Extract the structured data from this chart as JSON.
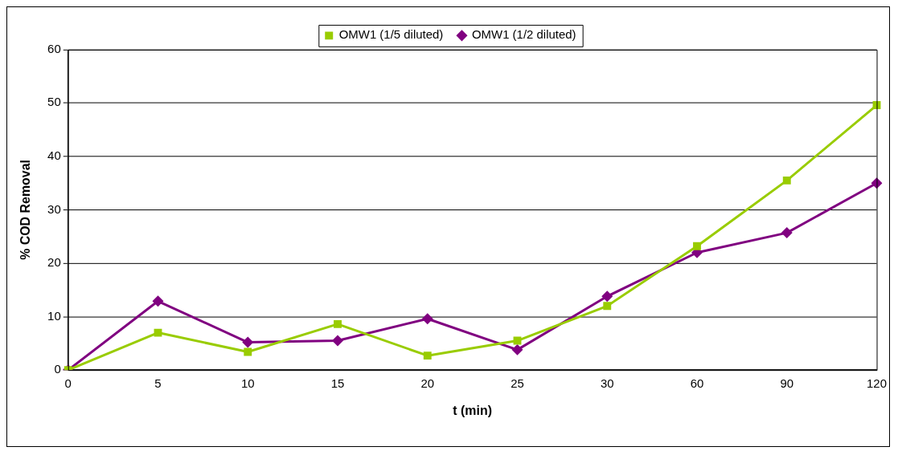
{
  "chart_data": {
    "type": "line",
    "xlabel": "t (min)",
    "ylabel": "% COD Removal",
    "categories": [
      "0",
      "5",
      "10",
      "15",
      "20",
      "25",
      "30",
      "60",
      "90",
      "120"
    ],
    "series": [
      {
        "name": "OMW1 (1/5 diluted)",
        "color": "#99cc00",
        "marker": "square",
        "values": [
          0,
          7.0,
          3.4,
          8.6,
          2.7,
          5.5,
          12.0,
          23.2,
          35.5,
          49.6
        ]
      },
      {
        "name": "OMW1 (1/2 diluted)",
        "color": "#800080",
        "marker": "diamond",
        "values": [
          0,
          12.9,
          5.2,
          5.5,
          9.6,
          3.8,
          13.8,
          22.0,
          25.7,
          35.0
        ]
      }
    ],
    "ylim": [
      0,
      60
    ],
    "yticks": [
      0,
      10,
      20,
      30,
      40,
      50,
      60
    ],
    "grid": "y",
    "legend": "top",
    "line_style": "solid"
  }
}
